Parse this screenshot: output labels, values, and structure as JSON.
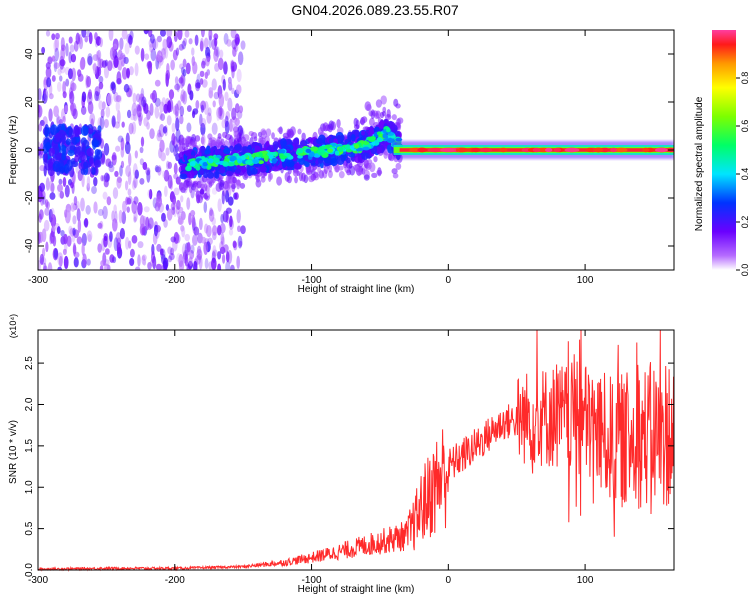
{
  "title": "GN04.2026.089.23.55.R07",
  "chart_data": [
    {
      "type": "heatmap",
      "name": "spectrogram",
      "xlabel": "Height of straight line (km)",
      "ylabel": "Frequency (Hz)",
      "xlim": [
        -300,
        165
      ],
      "ylim": [
        -50,
        50
      ],
      "xticks": [
        -300,
        -200,
        -100,
        0,
        100
      ],
      "yticks": [
        -40,
        -20,
        0,
        20,
        40
      ],
      "colorbar": {
        "label": "Normalized spectral amplitude",
        "range": [
          0,
          1
        ],
        "ticks": [
          0.0,
          0.2,
          0.4,
          0.6,
          0.8
        ]
      },
      "features": [
        {
          "description": "broadband noise",
          "x_range": [
            -300,
            -160
          ],
          "freq_range": [
            -50,
            50
          ],
          "amplitude": 0.2
        },
        {
          "description": "rising signal band",
          "x": [
            -195,
            -150,
            -100,
            -60,
            -45,
            -35
          ],
          "freq": [
            -6,
            -4,
            -1,
            2,
            7,
            2
          ],
          "amplitude": 0.45
        },
        {
          "description": "strong tone",
          "x_range": [
            -40,
            165
          ],
          "freq": 0,
          "amplitude": 0.95
        }
      ]
    },
    {
      "type": "line",
      "name": "snr",
      "xlabel": "Height of straight line (km)",
      "ylabel": "SNR (10 * v/v)",
      "yscale_label": "(x10⁴)",
      "xlim": [
        -300,
        165
      ],
      "ylim": [
        0,
        2.9
      ],
      "xticks": [
        -300,
        -200,
        -100,
        0,
        100
      ],
      "yticks": [
        0.0,
        0.5,
        1.0,
        1.5,
        2.0,
        2.5
      ],
      "color": "#ff2a2a",
      "series": [
        {
          "name": "SNR",
          "x": [
            -300,
            -250,
            -200,
            -150,
            -120,
            -100,
            -80,
            -60,
            -40,
            -30,
            -25,
            -20,
            -10,
            0,
            20,
            40,
            60,
            80,
            100,
            120,
            140,
            165
          ],
          "y": [
            0.01,
            0.02,
            0.02,
            0.04,
            0.09,
            0.15,
            0.22,
            0.3,
            0.38,
            0.42,
            0.55,
            0.75,
            1.0,
            1.25,
            1.5,
            1.78,
            1.85,
            1.85,
            1.8,
            1.55,
            1.6,
            1.7
          ]
        }
      ]
    }
  ]
}
